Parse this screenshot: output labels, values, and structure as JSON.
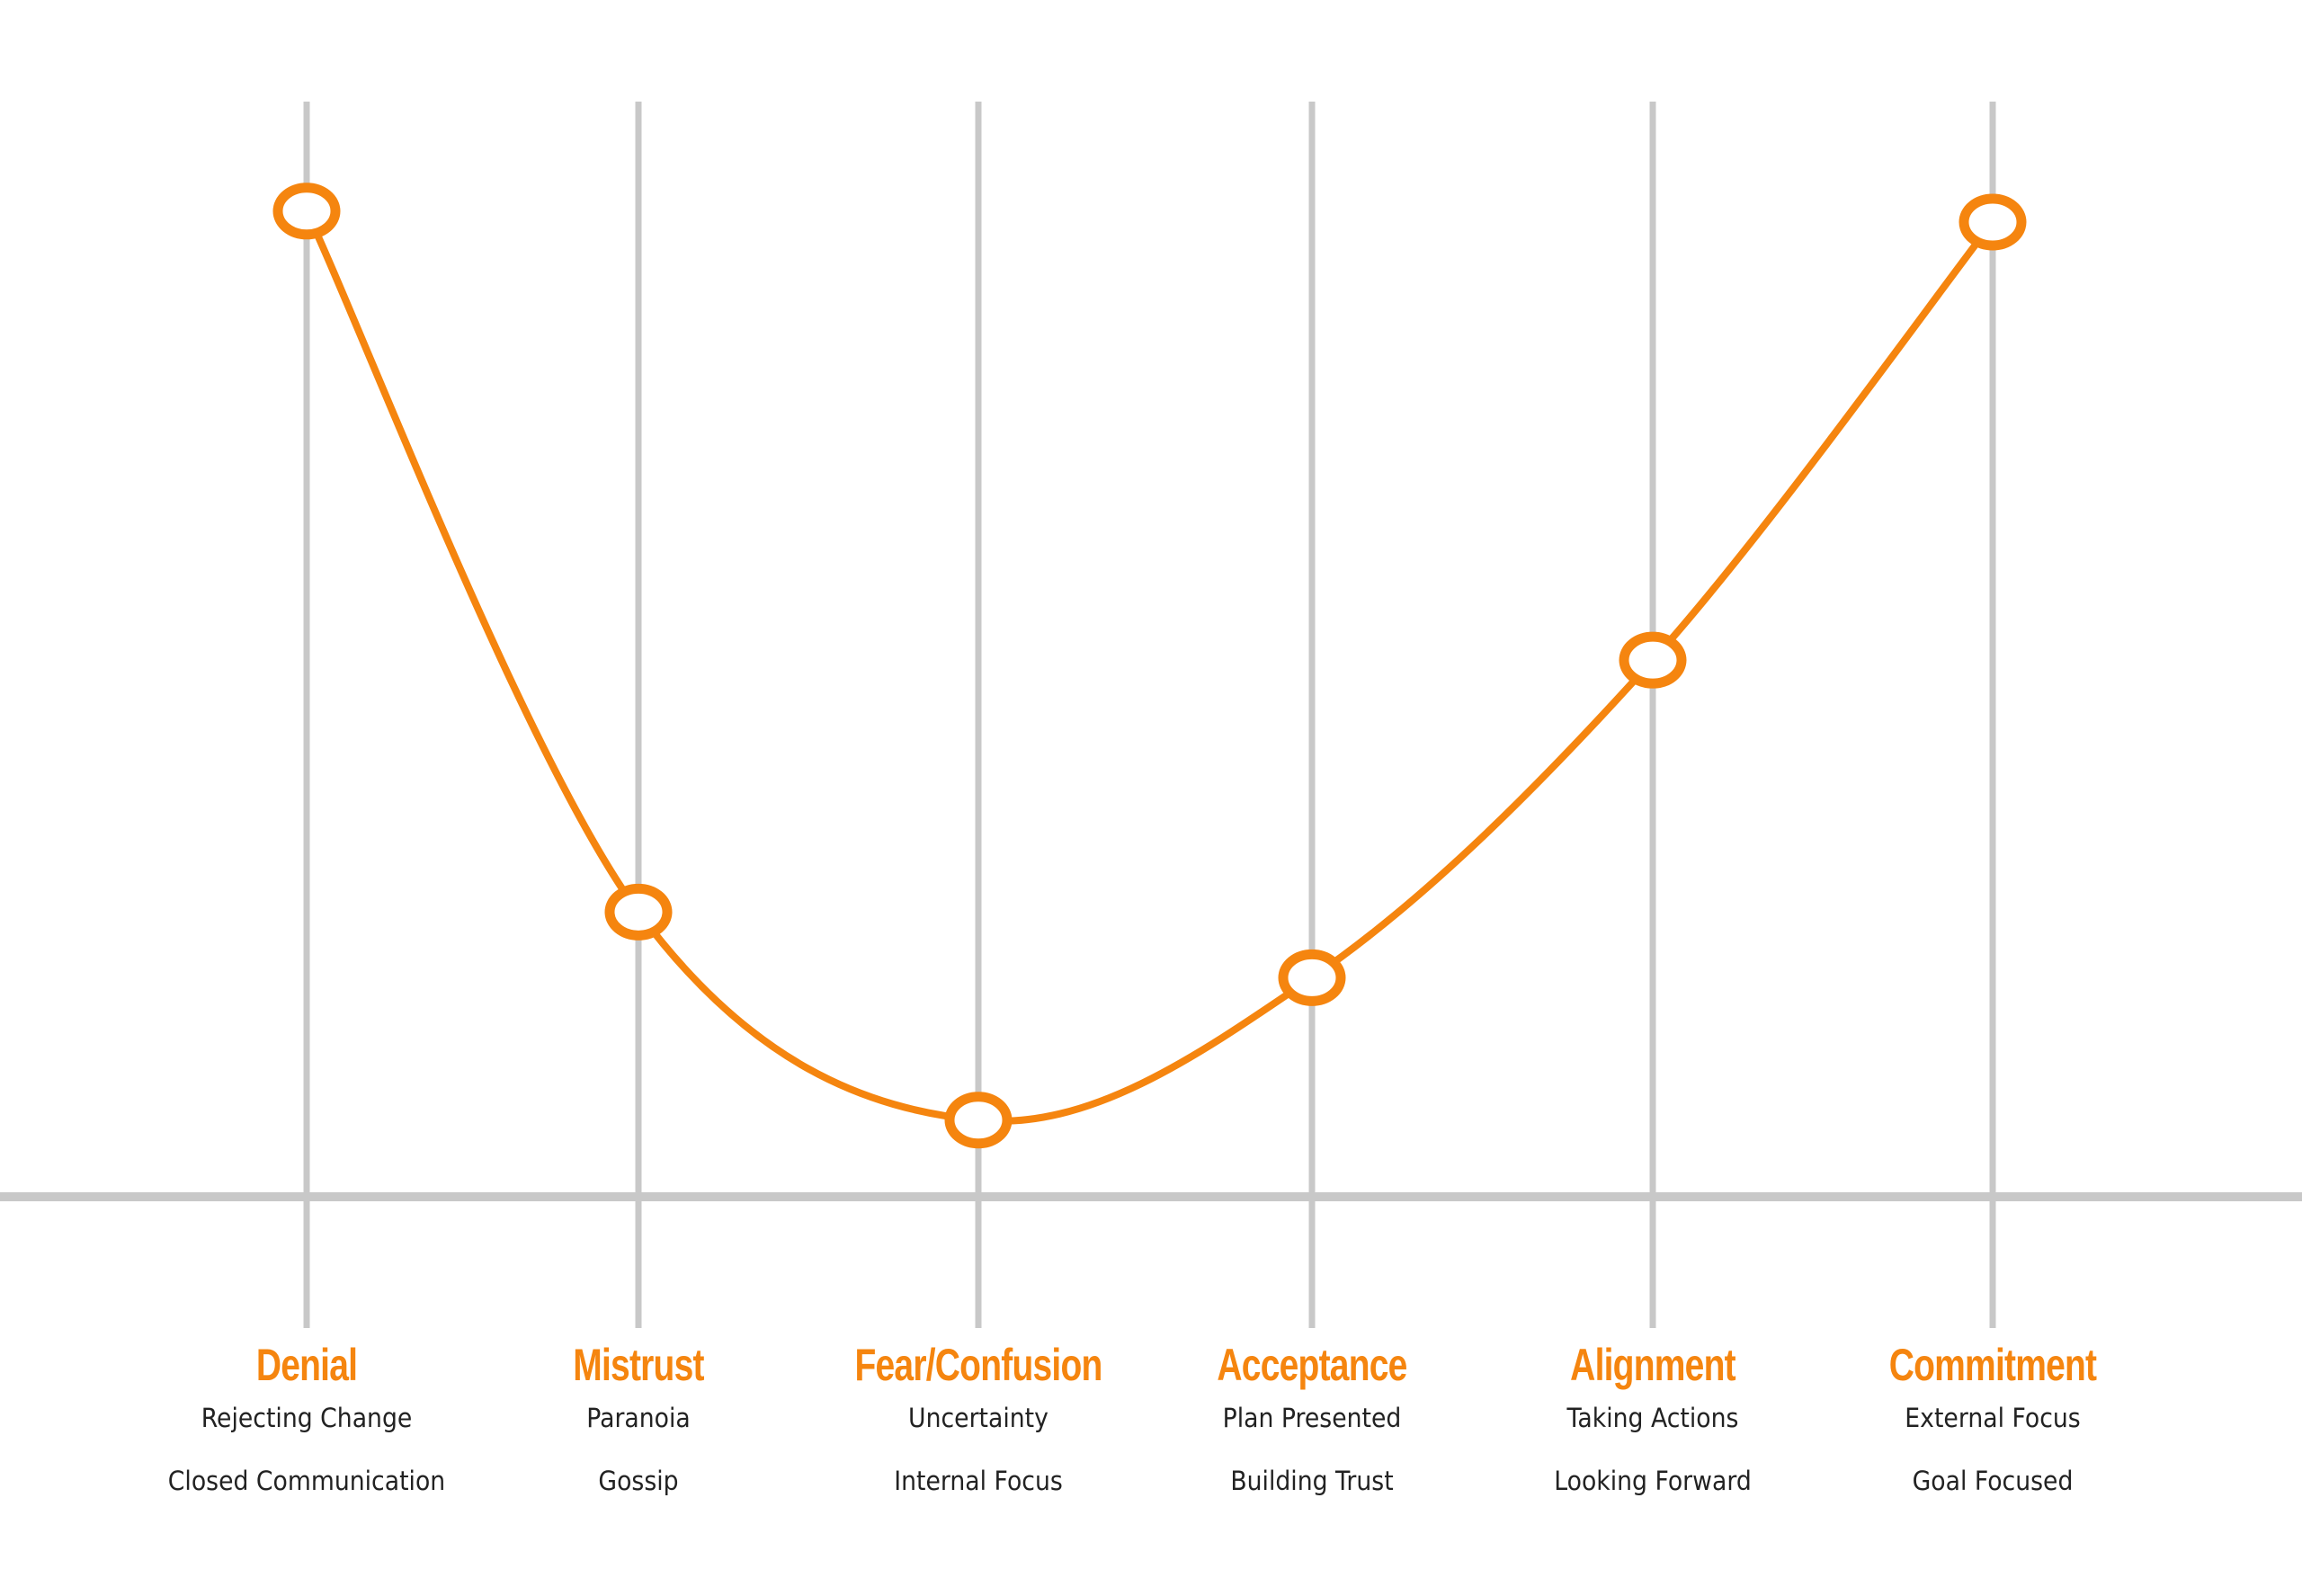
{
  "colors": {
    "accent": "#f5850f",
    "grid": "#c8c8c8",
    "text": "#222222",
    "background": "#ffffff"
  },
  "stages": [
    {
      "title": "Denial",
      "line1": "Rejecting Change",
      "line2": "Closed Communication"
    },
    {
      "title": "Mistrust",
      "line1": "Paranoia",
      "line2": "Gossip"
    },
    {
      "title": "Fear/Confusion",
      "line1": "Uncertainty",
      "line2": "Internal Focus"
    },
    {
      "title": "Acceptance",
      "line1": "Plan Presented",
      "line2": "Building Trust"
    },
    {
      "title": "Alignment",
      "line1": "Taking Actions",
      "line2": "Looking Forward"
    },
    {
      "title": "Commitment",
      "line1": "External Focus",
      "line2": "Goal Focused"
    }
  ],
  "chart_data": {
    "type": "line",
    "title": "",
    "xlabel": "",
    "ylabel": "",
    "categories": [
      "Denial",
      "Mistrust",
      "Fear/Confusion",
      "Acceptance",
      "Alignment",
      "Commitment"
    ],
    "values": [
      90,
      26,
      7,
      20,
      49,
      89
    ],
    "ylim": [
      0,
      100
    ],
    "grid": "vertical lines at each category",
    "smooth": true,
    "markers": "hollow circles",
    "legend": "none",
    "annotations": [
      [
        "Rejecting Change",
        "Closed Communication"
      ],
      [
        "Paranoia",
        "Gossip"
      ],
      [
        "Uncertainty",
        "Internal Focus"
      ],
      [
        "Plan Presented",
        "Building Trust"
      ],
      [
        "Taking Actions",
        "Looking Forward"
      ],
      [
        "External Focus",
        "Goal Focused"
      ]
    ]
  }
}
